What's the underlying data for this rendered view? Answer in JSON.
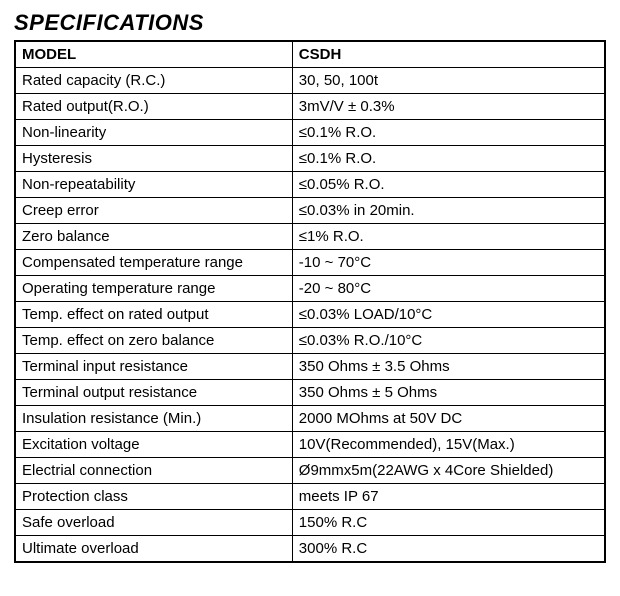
{
  "title": "SPECIFICATIONS",
  "header": {
    "label": "MODEL",
    "value": "CSDH"
  },
  "rows": [
    {
      "label": "Rated capacity (R.C.)",
      "value": "30, 50, 100t"
    },
    {
      "label": "Rated output(R.O.)",
      "value": "3mV/V ± 0.3%"
    },
    {
      "label": "Non-linearity",
      "value": "≤0.1% R.O."
    },
    {
      "label": "Hysteresis",
      "value": "≤0.1% R.O."
    },
    {
      "label": "Non-repeatability",
      "value": "≤0.05% R.O."
    },
    {
      "label": "Creep error",
      "value": "≤0.03% in 20min."
    },
    {
      "label": "Zero balance",
      "value": "≤1% R.O."
    },
    {
      "label": "Compensated temperature range",
      "value": "-10 ~ 70°C"
    },
    {
      "label": "Operating temperature range",
      "value": "-20 ~ 80°C"
    },
    {
      "label": "Temp. effect on rated output",
      "value": "≤0.03% LOAD/10°C"
    },
    {
      "label": "Temp. effect on zero balance",
      "value": "≤0.03% R.O./10°C"
    },
    {
      "label": "Terminal input resistance",
      "value": "350 Ohms ± 3.5 Ohms"
    },
    {
      "label": "Terminal output resistance",
      "value": "350 Ohms ± 5 Ohms"
    },
    {
      "label": "Insulation resistance (Min.)",
      "value": "2000 MOhms at 50V DC"
    },
    {
      "label": "Excitation voltage",
      "value": "10V(Recommended), 15V(Max.)"
    },
    {
      "label": "Electrial connection",
      "value": "Ø9mmx5m(22AWG x 4Core Shielded)"
    },
    {
      "label": "Protection class",
      "value": "meets IP 67"
    },
    {
      "label": "Safe overload",
      "value": "150% R.C"
    },
    {
      "label": "Ultimate overload",
      "value": "300% R.C"
    }
  ],
  "style": {
    "title_fontsize": 22,
    "cell_fontsize": 15,
    "text_color": "#000000",
    "background_color": "#ffffff",
    "border_color": "#000000",
    "font_family": "Arial"
  }
}
